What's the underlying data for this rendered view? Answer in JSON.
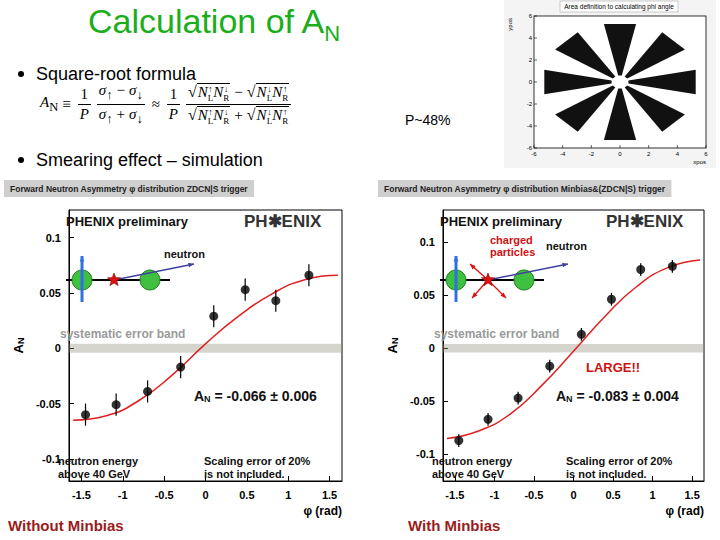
{
  "slide": {
    "title": {
      "text": "Calculation of A",
      "sub": "N"
    },
    "bullets": [
      "Square-root formula",
      "Smearing effect – simulation"
    ],
    "formula": {
      "lhs": {
        "symbol": "A",
        "sub": "N"
      },
      "equiv": "≡",
      "approx": "≈",
      "prefactor": {
        "num": "1",
        "den": "P"
      },
      "sigma": "σ",
      "up": "↑",
      "down": "↓",
      "minus": "−",
      "plus": "+",
      "count": "N",
      "left": "L",
      "right": "R",
      "root": "√"
    },
    "polarization": "P~48%",
    "phi_area_plot": {
      "title": "Area definition to calculating phi angle",
      "xlabel": "xpos",
      "ylabel": "ypos",
      "xlim": [
        -6,
        6
      ],
      "ylim": [
        -6,
        6
      ],
      "xticks": [
        -6,
        -4,
        -2,
        0,
        2,
        4,
        6
      ],
      "yticks": [
        -6,
        -4,
        -2,
        0,
        2,
        4,
        6
      ],
      "sectors": 8
    }
  },
  "chart_data": [
    {
      "type": "scatter",
      "title": "Forward Neutron Asymmetry φ distribution ZDCN|S trigger",
      "xlabel": "φ (rad)",
      "ylabel": {
        "symbol": "A",
        "sub": "N"
      },
      "x": [
        -1.45,
        -1.08,
        -0.7,
        -0.3,
        0.1,
        0.48,
        0.85,
        1.25
      ],
      "values": [
        -0.06,
        -0.051,
        -0.039,
        -0.017,
        0.029,
        0.053,
        0.043,
        0.066
      ],
      "errors": [
        0.01,
        0.01,
        0.01,
        0.01,
        0.01,
        0.01,
        0.01,
        0.01
      ],
      "color": "#000000",
      "marker": "circle",
      "fit": {
        "x": [
          -1.6,
          -1.2,
          -0.8,
          -0.4,
          0,
          0.4,
          0.8,
          1.2,
          1.6
        ],
        "values": [
          -0.065,
          -0.061,
          -0.047,
          -0.024,
          0.004,
          0.029,
          0.049,
          0.062,
          0.066
        ],
        "color": "#e02020"
      },
      "systematic_band": {
        "range": [
          -0.004,
          0.004
        ],
        "label": "systematic error band"
      },
      "xlim": [
        -1.65,
        1.65
      ],
      "ylim": [
        -0.12,
        0.125
      ],
      "xticks": [
        -1.5,
        -1,
        -0.5,
        0,
        0.5,
        1,
        1.5
      ],
      "yticks": [
        -0.1,
        -0.05,
        0,
        0.05,
        0.1
      ],
      "grid": false,
      "preliminary": "PHENIX preliminary",
      "logo": "PH✱ENIX",
      "neutron_label": "neutron",
      "result": {
        "symbol": "A",
        "sub": "N",
        "text": " = -0.066 ± 0.006"
      },
      "energy_note": [
        "neutron energy",
        "above 40 GeV"
      ],
      "scaling_note": [
        "Scaling error of 20%",
        "is not included."
      ],
      "caption": "Without Minbias"
    },
    {
      "type": "scatter",
      "title": "Forward Neutron Asymmetry φ distribution Minbias&(ZDCN|S) trigger",
      "xlabel": "φ (rad)",
      "ylabel": {
        "symbol": "A",
        "sub": "N"
      },
      "x": [
        -1.45,
        -1.08,
        -0.7,
        -0.3,
        0.1,
        0.48,
        0.85,
        1.25
      ],
      "values": [
        -0.087,
        -0.067,
        -0.047,
        -0.017,
        0.013,
        0.046,
        0.074,
        0.077
      ],
      "errors": [
        0.006,
        0.006,
        0.006,
        0.006,
        0.006,
        0.006,
        0.006,
        0.006
      ],
      "color": "#000000",
      "marker": "circle",
      "fit": {
        "x": [
          -1.6,
          -1.2,
          -0.8,
          -0.4,
          0,
          0.4,
          0.8,
          1.2,
          1.6
        ],
        "values": [
          -0.085,
          -0.078,
          -0.062,
          -0.035,
          -0.003,
          0.03,
          0.058,
          0.076,
          0.083
        ],
        "color": "#e02020"
      },
      "systematic_band": {
        "range": [
          -0.004,
          0.004
        ],
        "label": "systematic error band"
      },
      "xlim": [
        -1.65,
        1.65
      ],
      "ylim": [
        -0.125,
        0.13
      ],
      "xticks": [
        -1.5,
        -1,
        -0.5,
        0,
        0.5,
        1,
        1.5
      ],
      "yticks": [
        -0.1,
        -0.05,
        0,
        0.05,
        0.1
      ],
      "grid": false,
      "preliminary": "PHENIX preliminary",
      "logo": "PH✱ENIX",
      "neutron_label": "neutron",
      "charged_label": [
        "charged",
        "particles"
      ],
      "emphasis": "LARGE!!",
      "result": {
        "symbol": "A",
        "sub": "N",
        "text": " = -0.083 ± 0.004"
      },
      "energy_note": [
        "neutron energy",
        "above 40 GeV"
      ],
      "scaling_note": [
        "Scaling error of 20%",
        "is not included."
      ],
      "caption": "With Minbias"
    }
  ]
}
